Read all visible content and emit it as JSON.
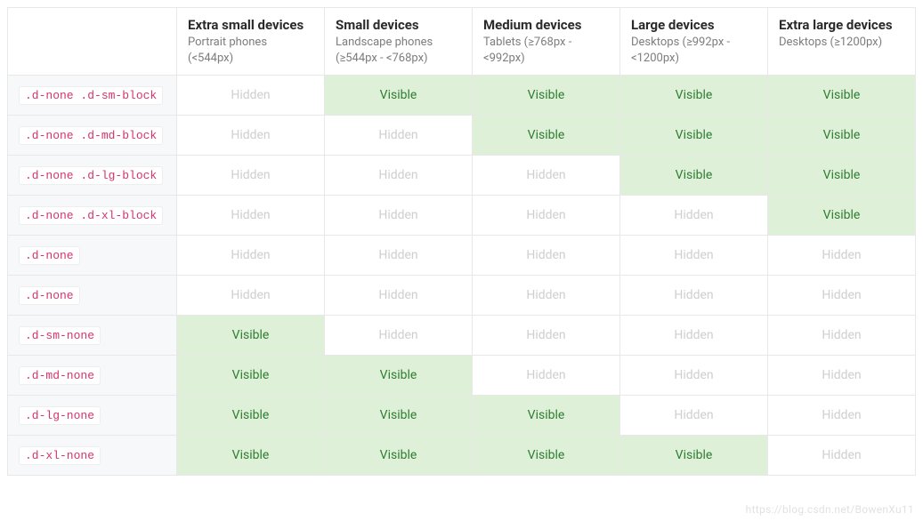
{
  "type": "table",
  "watermark": "https://blog.csdn.net/BowenXu11",
  "columns": [
    {
      "title": "Extra small devices",
      "sub": "Portrait phones (<544px)"
    },
    {
      "title": "Small devices",
      "sub": "Landscape phones (≥544px - <768px)"
    },
    {
      "title": "Medium devices",
      "sub": "Tablets (≥768px - <992px)"
    },
    {
      "title": "Large devices",
      "sub": "Desktops (≥992px - <1200px)"
    },
    {
      "title": "Extra large devices",
      "sub": "Desktops (≥1200px)"
    }
  ],
  "labels": {
    "visible": "Visible",
    "hidden": "Hidden"
  },
  "colors": {
    "visible_bg": "#dff0d8",
    "visible_text": "#2e7d32",
    "hidden_text": "#cfcfcf",
    "code_text": "#d6336c",
    "code_bg": "#ffffff",
    "code_border": "#eceef0",
    "cell_border": "#e8e8e8",
    "class_cell_bg": "#f7f8f9",
    "header_title": "#2b2b2b",
    "header_sub": "#7d7d7d"
  },
  "rows": [
    {
      "class": ".d-none .d-sm-block",
      "cells": [
        "hidden",
        "visible",
        "visible",
        "visible",
        "visible"
      ]
    },
    {
      "class": ".d-none .d-md-block",
      "cells": [
        "hidden",
        "hidden",
        "visible",
        "visible",
        "visible"
      ]
    },
    {
      "class": ".d-none .d-lg-block",
      "cells": [
        "hidden",
        "hidden",
        "hidden",
        "visible",
        "visible"
      ]
    },
    {
      "class": ".d-none .d-xl-block",
      "cells": [
        "hidden",
        "hidden",
        "hidden",
        "hidden",
        "visible"
      ]
    },
    {
      "class": ".d-none",
      "cells": [
        "hidden",
        "hidden",
        "hidden",
        "hidden",
        "hidden"
      ]
    },
    {
      "class": ".d-none",
      "cells": [
        "hidden",
        "hidden",
        "hidden",
        "hidden",
        "hidden"
      ]
    },
    {
      "class": ".d-sm-none",
      "cells": [
        "visible",
        "hidden",
        "hidden",
        "hidden",
        "hidden"
      ]
    },
    {
      "class": ".d-md-none",
      "cells": [
        "visible",
        "visible",
        "hidden",
        "hidden",
        "hidden"
      ]
    },
    {
      "class": ".d-lg-none",
      "cells": [
        "visible",
        "visible",
        "visible",
        "hidden",
        "hidden"
      ]
    },
    {
      "class": ".d-xl-none",
      "cells": [
        "visible",
        "visible",
        "visible",
        "visible",
        "hidden"
      ]
    }
  ]
}
